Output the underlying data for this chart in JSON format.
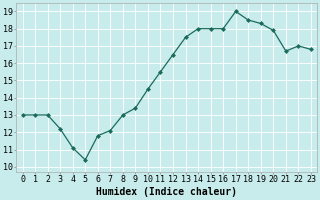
{
  "x": [
    0,
    1,
    2,
    3,
    4,
    5,
    6,
    7,
    8,
    9,
    10,
    11,
    12,
    13,
    14,
    15,
    16,
    17,
    18,
    19,
    20,
    21,
    22,
    23
  ],
  "y": [
    13.0,
    13.0,
    13.0,
    12.2,
    11.1,
    10.4,
    11.8,
    12.1,
    13.0,
    13.4,
    14.5,
    15.5,
    16.5,
    17.5,
    18.0,
    18.0,
    18.0,
    19.0,
    18.5,
    18.3,
    17.9,
    16.7,
    17.0,
    16.8
  ],
  "line_color": "#1a6b5c",
  "marker": "D",
  "marker_size": 2,
  "bg_color": "#c8ecec",
  "grid_color": "#ffffff",
  "xlabel": "Humidex (Indice chaleur)",
  "ylabel_ticks": [
    10,
    11,
    12,
    13,
    14,
    15,
    16,
    17,
    18,
    19
  ],
  "ylim": [
    9.7,
    19.5
  ],
  "xlim": [
    -0.5,
    23.5
  ],
  "title_color": "#000000",
  "tick_fontsize": 6,
  "xlabel_fontsize": 7
}
